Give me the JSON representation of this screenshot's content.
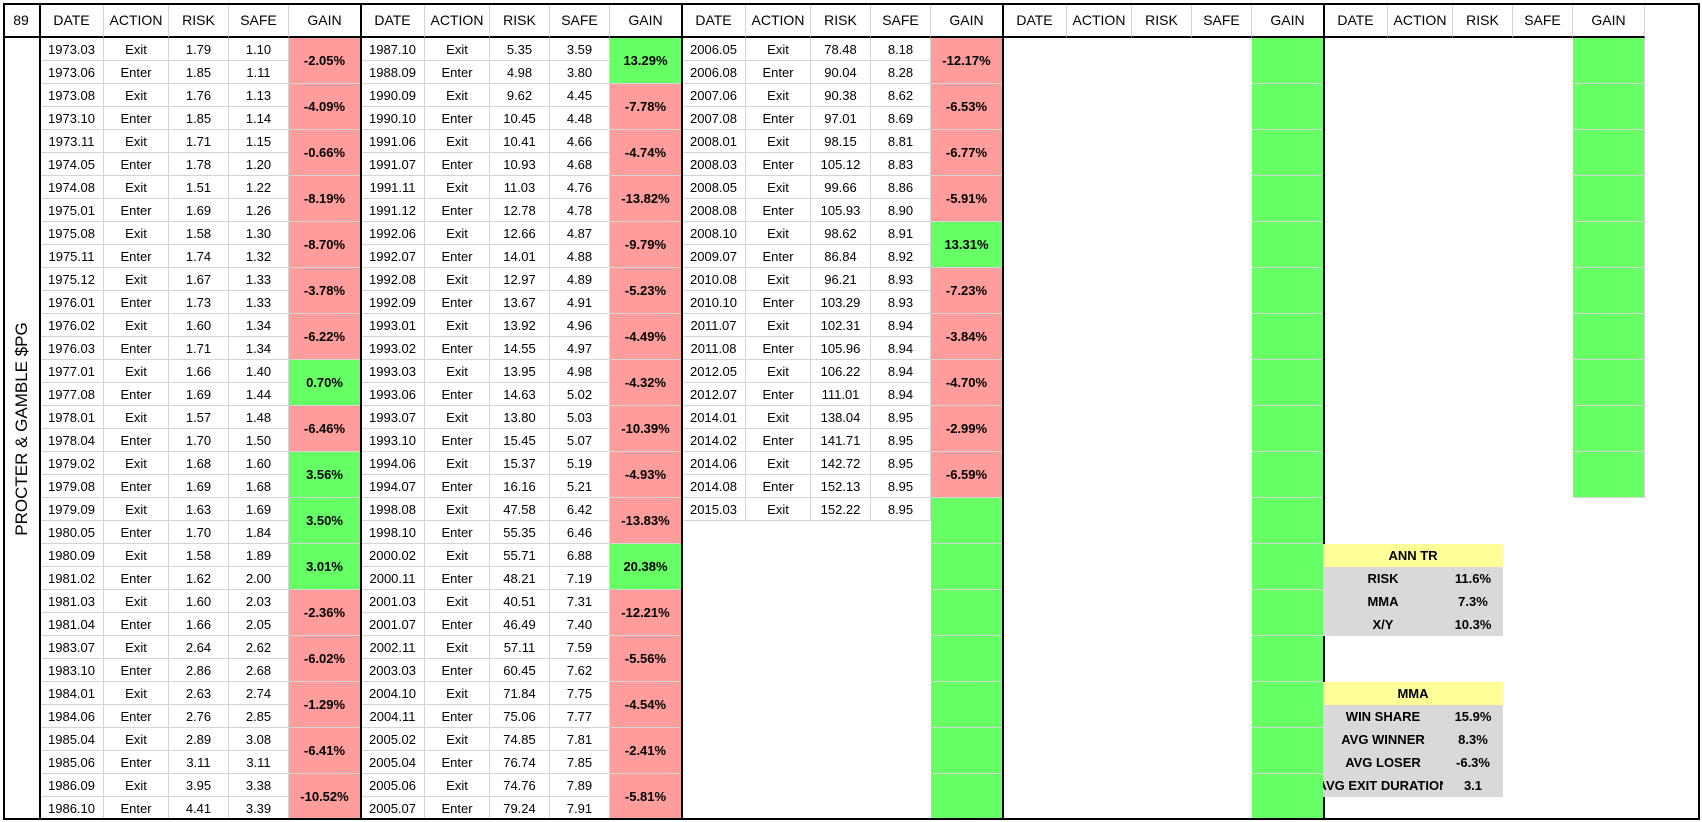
{
  "corner": "89",
  "side_label": "PROCTER & GAMBLE $PG",
  "headers": [
    "DATE",
    "ACTION",
    "RISK",
    "SAFE",
    "GAIN"
  ],
  "colors": {
    "negative": "#ff9c9c",
    "positive": "#66ff66",
    "summary_head": "#ffff99",
    "summary_row": "#d9d9d9"
  },
  "groups": [
    {
      "rows": [
        [
          "1973.03",
          "Exit",
          "1.79",
          "1.10"
        ],
        [
          "1973.06",
          "Enter",
          "1.85",
          "1.11"
        ],
        [
          "1973.08",
          "Exit",
          "1.76",
          "1.13"
        ],
        [
          "1973.10",
          "Enter",
          "1.85",
          "1.14"
        ],
        [
          "1973.11",
          "Exit",
          "1.71",
          "1.15"
        ],
        [
          "1974.05",
          "Enter",
          "1.78",
          "1.20"
        ],
        [
          "1974.08",
          "Exit",
          "1.51",
          "1.22"
        ],
        [
          "1975.01",
          "Enter",
          "1.69",
          "1.26"
        ],
        [
          "1975.08",
          "Exit",
          "1.58",
          "1.30"
        ],
        [
          "1975.11",
          "Enter",
          "1.74",
          "1.32"
        ],
        [
          "1975.12",
          "Exit",
          "1.67",
          "1.33"
        ],
        [
          "1976.01",
          "Enter",
          "1.73",
          "1.33"
        ],
        [
          "1976.02",
          "Exit",
          "1.60",
          "1.34"
        ],
        [
          "1976.03",
          "Enter",
          "1.71",
          "1.34"
        ],
        [
          "1977.01",
          "Exit",
          "1.66",
          "1.40"
        ],
        [
          "1977.08",
          "Enter",
          "1.69",
          "1.44"
        ],
        [
          "1978.01",
          "Exit",
          "1.57",
          "1.48"
        ],
        [
          "1978.04",
          "Enter",
          "1.70",
          "1.50"
        ],
        [
          "1979.02",
          "Exit",
          "1.68",
          "1.60"
        ],
        [
          "1979.08",
          "Enter",
          "1.69",
          "1.68"
        ],
        [
          "1979.09",
          "Exit",
          "1.63",
          "1.69"
        ],
        [
          "1980.05",
          "Enter",
          "1.70",
          "1.84"
        ],
        [
          "1980.09",
          "Exit",
          "1.58",
          "1.89"
        ],
        [
          "1981.02",
          "Enter",
          "1.62",
          "2.00"
        ],
        [
          "1981.03",
          "Exit",
          "1.60",
          "2.03"
        ],
        [
          "1981.04",
          "Enter",
          "1.66",
          "2.05"
        ],
        [
          "1983.07",
          "Exit",
          "2.64",
          "2.62"
        ],
        [
          "1983.10",
          "Enter",
          "2.86",
          "2.68"
        ],
        [
          "1984.01",
          "Exit",
          "2.63",
          "2.74"
        ],
        [
          "1984.06",
          "Enter",
          "2.76",
          "2.85"
        ],
        [
          "1985.04",
          "Exit",
          "2.89",
          "3.08"
        ],
        [
          "1985.06",
          "Enter",
          "3.11",
          "3.11"
        ],
        [
          "1986.09",
          "Exit",
          "3.95",
          "3.38"
        ],
        [
          "1986.10",
          "Enter",
          "4.41",
          "3.39"
        ]
      ],
      "gains": [
        {
          "v": "-2.05%",
          "t": "neg"
        },
        {
          "v": "-4.09%",
          "t": "neg"
        },
        {
          "v": "-0.66%",
          "t": "neg"
        },
        {
          "v": "-8.19%",
          "t": "neg"
        },
        {
          "v": "-8.70%",
          "t": "neg"
        },
        {
          "v": "-3.78%",
          "t": "neg"
        },
        {
          "v": "-6.22%",
          "t": "neg"
        },
        {
          "v": "0.70%",
          "t": "pos"
        },
        {
          "v": "-6.46%",
          "t": "neg"
        },
        {
          "v": "3.56%",
          "t": "pos"
        },
        {
          "v": "3.50%",
          "t": "pos"
        },
        {
          "v": "3.01%",
          "t": "pos"
        },
        {
          "v": "-2.36%",
          "t": "neg"
        },
        {
          "v": "-6.02%",
          "t": "neg"
        },
        {
          "v": "-1.29%",
          "t": "neg"
        },
        {
          "v": "-6.41%",
          "t": "neg"
        },
        {
          "v": "-10.52%",
          "t": "neg"
        }
      ]
    },
    {
      "rows": [
        [
          "1987.10",
          "Exit",
          "5.35",
          "3.59"
        ],
        [
          "1988.09",
          "Enter",
          "4.98",
          "3.80"
        ],
        [
          "1990.09",
          "Exit",
          "9.62",
          "4.45"
        ],
        [
          "1990.10",
          "Enter",
          "10.45",
          "4.48"
        ],
        [
          "1991.06",
          "Exit",
          "10.41",
          "4.66"
        ],
        [
          "1991.07",
          "Enter",
          "10.93",
          "4.68"
        ],
        [
          "1991.11",
          "Exit",
          "11.03",
          "4.76"
        ],
        [
          "1991.12",
          "Enter",
          "12.78",
          "4.78"
        ],
        [
          "1992.06",
          "Exit",
          "12.66",
          "4.87"
        ],
        [
          "1992.07",
          "Enter",
          "14.01",
          "4.88"
        ],
        [
          "1992.08",
          "Exit",
          "12.97",
          "4.89"
        ],
        [
          "1992.09",
          "Enter",
          "13.67",
          "4.91"
        ],
        [
          "1993.01",
          "Exit",
          "13.92",
          "4.96"
        ],
        [
          "1993.02",
          "Enter",
          "14.55",
          "4.97"
        ],
        [
          "1993.03",
          "Exit",
          "13.95",
          "4.98"
        ],
        [
          "1993.06",
          "Enter",
          "14.63",
          "5.02"
        ],
        [
          "1993.07",
          "Exit",
          "13.80",
          "5.03"
        ],
        [
          "1993.10",
          "Enter",
          "15.45",
          "5.07"
        ],
        [
          "1994.06",
          "Exit",
          "15.37",
          "5.19"
        ],
        [
          "1994.07",
          "Enter",
          "16.16",
          "5.21"
        ],
        [
          "1998.08",
          "Exit",
          "47.58",
          "6.42"
        ],
        [
          "1998.10",
          "Enter",
          "55.35",
          "6.46"
        ],
        [
          "2000.02",
          "Exit",
          "55.71",
          "6.88"
        ],
        [
          "2000.11",
          "Enter",
          "48.21",
          "7.19"
        ],
        [
          "2001.03",
          "Exit",
          "40.51",
          "7.31"
        ],
        [
          "2001.07",
          "Enter",
          "46.49",
          "7.40"
        ],
        [
          "2002.11",
          "Exit",
          "57.11",
          "7.59"
        ],
        [
          "2003.03",
          "Enter",
          "60.45",
          "7.62"
        ],
        [
          "2004.10",
          "Exit",
          "71.84",
          "7.75"
        ],
        [
          "2004.11",
          "Enter",
          "75.06",
          "7.77"
        ],
        [
          "2005.02",
          "Exit",
          "74.85",
          "7.81"
        ],
        [
          "2005.04",
          "Enter",
          "76.74",
          "7.85"
        ],
        [
          "2005.06",
          "Exit",
          "74.76",
          "7.89"
        ],
        [
          "2005.07",
          "Enter",
          "79.24",
          "7.91"
        ]
      ],
      "gains": [
        {
          "v": "13.29%",
          "t": "pos"
        },
        {
          "v": "-7.78%",
          "t": "neg"
        },
        {
          "v": "-4.74%",
          "t": "neg"
        },
        {
          "v": "-13.82%",
          "t": "neg"
        },
        {
          "v": "-9.79%",
          "t": "neg"
        },
        {
          "v": "-5.23%",
          "t": "neg"
        },
        {
          "v": "-4.49%",
          "t": "neg"
        },
        {
          "v": "-4.32%",
          "t": "neg"
        },
        {
          "v": "-10.39%",
          "t": "neg"
        },
        {
          "v": "-4.93%",
          "t": "neg"
        },
        {
          "v": "-13.83%",
          "t": "neg"
        },
        {
          "v": "20.38%",
          "t": "pos"
        },
        {
          "v": "-12.21%",
          "t": "neg"
        },
        {
          "v": "-5.56%",
          "t": "neg"
        },
        {
          "v": "-4.54%",
          "t": "neg"
        },
        {
          "v": "-2.41%",
          "t": "neg"
        },
        {
          "v": "-5.81%",
          "t": "neg"
        }
      ]
    },
    {
      "rows": [
        [
          "2006.05",
          "Exit",
          "78.48",
          "8.18"
        ],
        [
          "2006.08",
          "Enter",
          "90.04",
          "8.28"
        ],
        [
          "2007.06",
          "Exit",
          "90.38",
          "8.62"
        ],
        [
          "2007.08",
          "Enter",
          "97.01",
          "8.69"
        ],
        [
          "2008.01",
          "Exit",
          "98.15",
          "8.81"
        ],
        [
          "2008.03",
          "Enter",
          "105.12",
          "8.83"
        ],
        [
          "2008.05",
          "Exit",
          "99.66",
          "8.86"
        ],
        [
          "2008.08",
          "Enter",
          "105.93",
          "8.90"
        ],
        [
          "2008.10",
          "Exit",
          "98.62",
          "8.91"
        ],
        [
          "2009.07",
          "Enter",
          "86.84",
          "8.92"
        ],
        [
          "2010.08",
          "Exit",
          "96.21",
          "8.93"
        ],
        [
          "2010.10",
          "Enter",
          "103.29",
          "8.93"
        ],
        [
          "2011.07",
          "Exit",
          "102.31",
          "8.94"
        ],
        [
          "2011.08",
          "Enter",
          "105.96",
          "8.94"
        ],
        [
          "2012.05",
          "Exit",
          "106.22",
          "8.94"
        ],
        [
          "2012.07",
          "Enter",
          "111.01",
          "8.94"
        ],
        [
          "2014.01",
          "Exit",
          "138.04",
          "8.95"
        ],
        [
          "2014.02",
          "Enter",
          "141.71",
          "8.95"
        ],
        [
          "2014.06",
          "Exit",
          "142.72",
          "8.95"
        ],
        [
          "2014.08",
          "Enter",
          "152.13",
          "8.95"
        ],
        [
          "2015.03",
          "Exit",
          "152.22",
          "8.95"
        ]
      ],
      "gains": [
        {
          "v": "-12.17%",
          "t": "neg"
        },
        {
          "v": "-6.53%",
          "t": "neg"
        },
        {
          "v": "-6.77%",
          "t": "neg"
        },
        {
          "v": "-5.91%",
          "t": "neg"
        },
        {
          "v": "13.31%",
          "t": "pos"
        },
        {
          "v": "-7.23%",
          "t": "neg"
        },
        {
          "v": "-3.84%",
          "t": "neg"
        },
        {
          "v": "-4.70%",
          "t": "neg"
        },
        {
          "v": "-2.99%",
          "t": "neg"
        },
        {
          "v": "-6.59%",
          "t": "neg"
        },
        {
          "v": "",
          "t": "pos"
        },
        {
          "v": "",
          "t": "pos"
        },
        {
          "v": "",
          "t": "pos"
        },
        {
          "v": "",
          "t": "pos"
        },
        {
          "v": "",
          "t": "pos"
        },
        {
          "v": "",
          "t": "pos"
        },
        {
          "v": "",
          "t": "pos"
        }
      ]
    },
    {
      "rows": [],
      "gains": [
        {
          "v": "",
          "t": "pos"
        },
        {
          "v": "",
          "t": "pos"
        },
        {
          "v": "",
          "t": "pos"
        },
        {
          "v": "",
          "t": "pos"
        },
        {
          "v": "",
          "t": "pos"
        },
        {
          "v": "",
          "t": "pos"
        },
        {
          "v": "",
          "t": "pos"
        },
        {
          "v": "",
          "t": "pos"
        },
        {
          "v": "",
          "t": "pos"
        },
        {
          "v": "",
          "t": "pos"
        },
        {
          "v": "",
          "t": "pos"
        },
        {
          "v": "",
          "t": "pos"
        },
        {
          "v": "",
          "t": "pos"
        },
        {
          "v": "",
          "t": "pos"
        },
        {
          "v": "",
          "t": "pos"
        },
        {
          "v": "",
          "t": "pos"
        },
        {
          "v": "",
          "t": "pos"
        }
      ]
    },
    {
      "rows": [],
      "gains": [
        {
          "v": "",
          "t": "pos"
        },
        {
          "v": "",
          "t": "pos"
        },
        {
          "v": "",
          "t": "pos"
        },
        {
          "v": "",
          "t": "pos"
        },
        {
          "v": "",
          "t": "pos"
        },
        {
          "v": "",
          "t": "pos"
        },
        {
          "v": "",
          "t": "pos"
        },
        {
          "v": "",
          "t": "pos"
        },
        {
          "v": "",
          "t": "pos"
        },
        {
          "v": "",
          "t": "pos"
        }
      ]
    }
  ],
  "summary": {
    "ann_tr": {
      "title": "ANN TR",
      "rows": [
        {
          "label": "RISK",
          "value": "11.6%"
        },
        {
          "label": "MMA",
          "value": "7.3%"
        },
        {
          "label": "X/Y",
          "value": "10.3%"
        }
      ]
    },
    "mma": {
      "title": "MMA",
      "rows": [
        {
          "label": "WIN SHARE",
          "value": "15.9%"
        },
        {
          "label": "AVG WINNER",
          "value": "8.3%"
        },
        {
          "label": "AVG LOSER",
          "value": "-6.3%"
        },
        {
          "label": "AVG EXIT DURATION",
          "value": "3.1"
        }
      ]
    }
  }
}
